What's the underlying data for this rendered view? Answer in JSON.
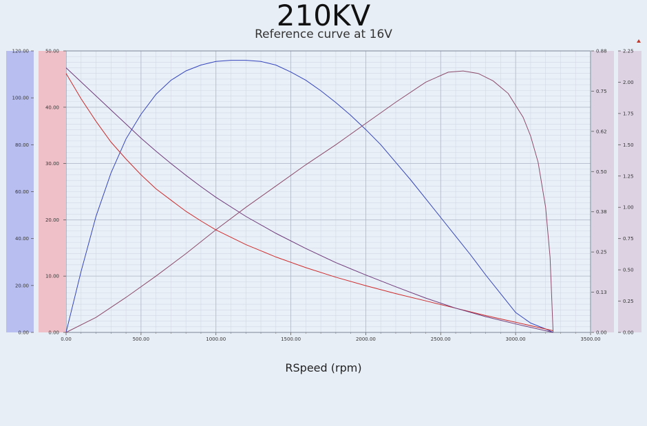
{
  "chart_data": {
    "type": "line",
    "title": "210KV",
    "subtitle": "Reference curve at 16V",
    "xlabel": "RSpeed (rpm)",
    "xlim": [
      0,
      3500
    ],
    "x_ticks": [
      "0.00",
      "500.00",
      "1000.00",
      "1500.00",
      "2000.00",
      "2500.00",
      "3000.00",
      "3500.00"
    ],
    "axes": [
      {
        "id": "left-blue",
        "range": [
          0,
          120
        ],
        "ticks": [
          "0.00",
          "20.00",
          "40.00",
          "60.00",
          "80.00",
          "100.00",
          "120.00"
        ],
        "color": "#b8bff0"
      },
      {
        "id": "left-red",
        "range": [
          0,
          50
        ],
        "ticks": [
          "0.00",
          "10.00",
          "20.00",
          "30.00",
          "40.00",
          "50.00"
        ],
        "color": "#f0c0c8"
      },
      {
        "id": "right-purple1",
        "range": [
          0,
          0.88
        ],
        "ticks": [
          "0.00",
          "0.13",
          "0.25",
          "0.38",
          "0.50",
          "0.62",
          "0.75",
          "0.88"
        ],
        "color": "#dcd2e2"
      },
      {
        "id": "right-purple2",
        "range": [
          0,
          2.25
        ],
        "ticks": [
          "0.00",
          "0.25",
          "0.50",
          "0.75",
          "1.00",
          "1.25",
          "1.50",
          "1.75",
          "2.00",
          "2.25"
        ],
        "color": "#dcd2e2"
      }
    ],
    "grid": true,
    "series": [
      {
        "color": "#3344bb",
        "axis": "left-blue",
        "x": [
          0,
          100,
          200,
          300,
          400,
          500,
          600,
          700,
          800,
          900,
          1000,
          1100,
          1200,
          1300,
          1400,
          1500,
          1600,
          1700,
          1800,
          1900,
          2000,
          2100,
          2200,
          2300,
          2400,
          2500,
          2600,
          2700,
          2800,
          2900,
          3000,
          3100,
          3200,
          3250
        ],
        "y": [
          0,
          26,
          49.5,
          68,
          82.5,
          93,
          101.5,
          107.5,
          111.5,
          114,
          115.5,
          116,
          116,
          115.5,
          114,
          111,
          107.5,
          103,
          98,
          92.5,
          86.5,
          80,
          72.5,
          65,
          57,
          49,
          41,
          33,
          24.5,
          16.5,
          8.5,
          4,
          1.5,
          0
        ]
      },
      {
        "color": "#cc2b2b",
        "axis": "left-red",
        "x": [
          0,
          100,
          200,
          300,
          400,
          500,
          600,
          700,
          800,
          900,
          1000,
          1200,
          1400,
          1600,
          1800,
          2000,
          2200,
          2400,
          2600,
          2800,
          3000,
          3250
        ],
        "y": [
          46,
          41.5,
          37.5,
          33.8,
          30.8,
          28,
          25.5,
          23.5,
          21.5,
          19.8,
          18.2,
          15.6,
          13.4,
          11.5,
          9.8,
          8.3,
          6.9,
          5.6,
          4.3,
          3,
          1.8,
          0.3
        ]
      },
      {
        "color": "#6e3a7a",
        "axis": "left-red",
        "x": [
          0,
          100,
          200,
          300,
          400,
          500,
          600,
          700,
          800,
          900,
          1000,
          1200,
          1400,
          1600,
          1800,
          2000,
          2200,
          2400,
          2600,
          2800,
          3000,
          3250
        ],
        "y": [
          47,
          44.5,
          42,
          39.5,
          37,
          34.5,
          32.2,
          30,
          27.9,
          25.9,
          24,
          20.6,
          17.6,
          14.9,
          12.4,
          10.2,
          8.1,
          6.1,
          4.3,
          2.8,
          1.5,
          0
        ]
      },
      {
        "color": "#8a4a6a",
        "axis": "right-purple2",
        "x": [
          0,
          200,
          400,
          600,
          800,
          1000,
          1200,
          1400,
          1600,
          1800,
          2000,
          2200,
          2400,
          2550,
          2650,
          2750,
          2850,
          2950,
          3050,
          3100,
          3150,
          3200,
          3230,
          3250
        ],
        "y": [
          0,
          0.12,
          0.28,
          0.45,
          0.63,
          0.82,
          1.0,
          1.17,
          1.34,
          1.5,
          1.67,
          1.84,
          2.0,
          2.08,
          2.09,
          2.07,
          2.01,
          1.91,
          1.72,
          1.57,
          1.36,
          1.0,
          0.6,
          0.0
        ]
      }
    ]
  }
}
